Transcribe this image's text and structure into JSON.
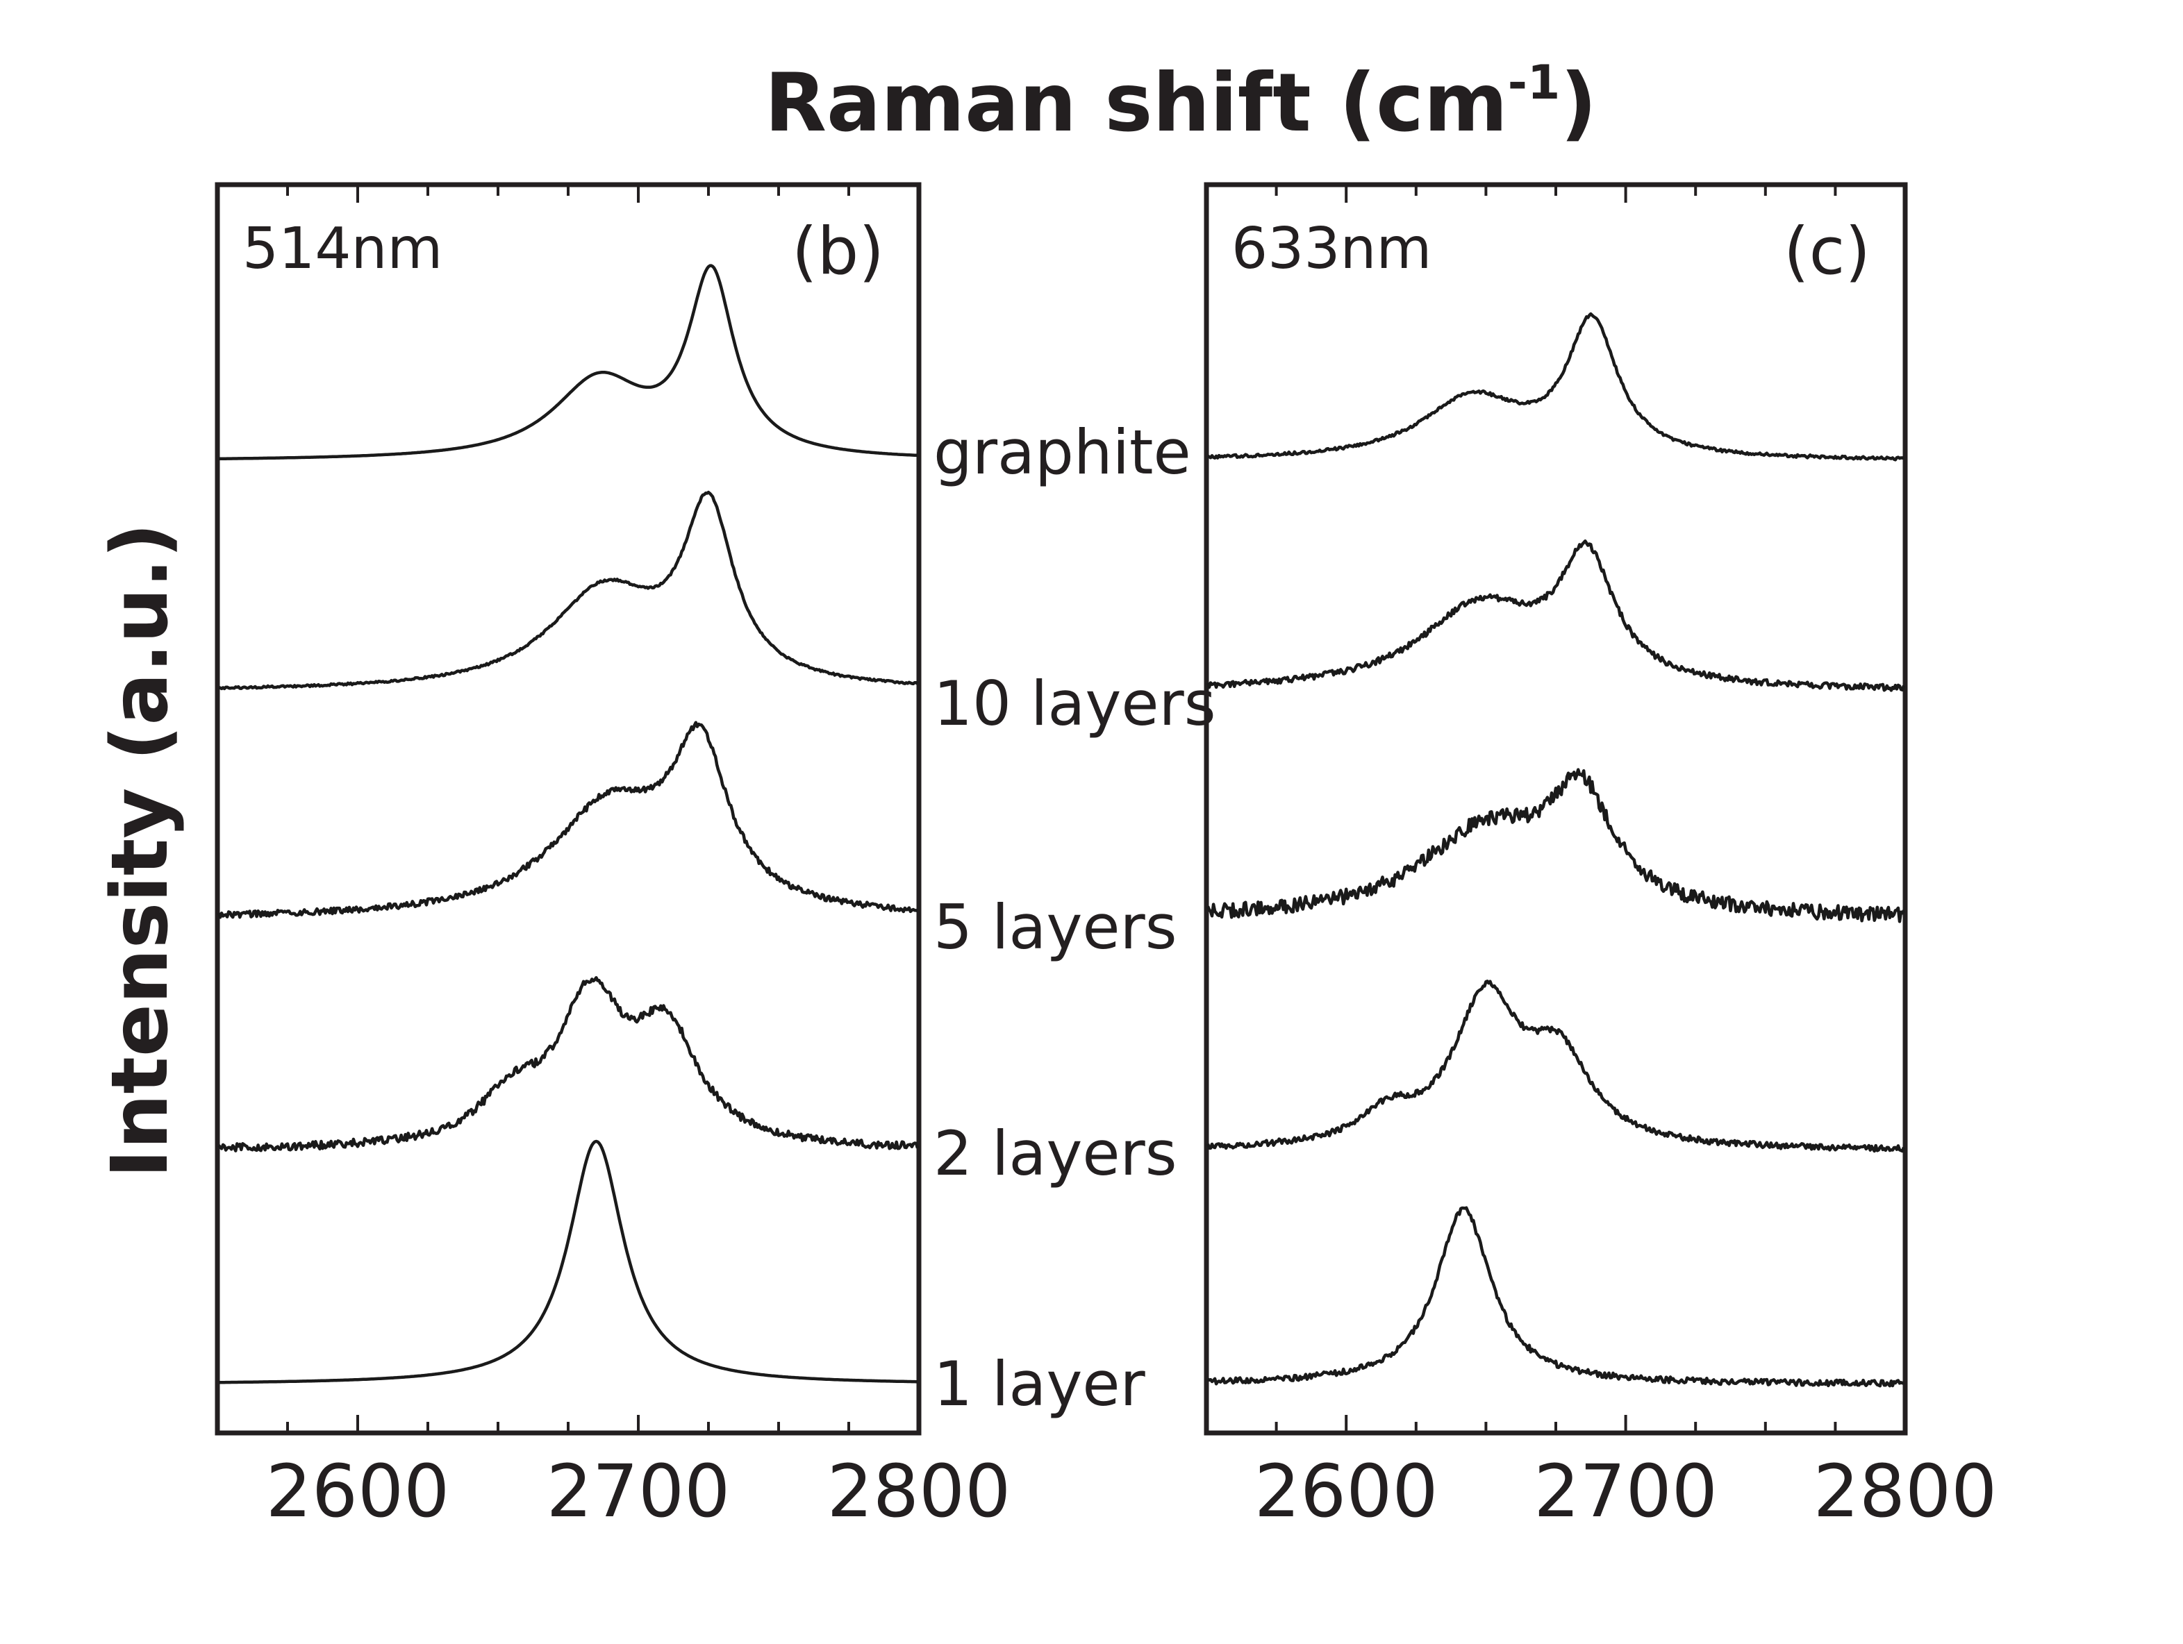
{
  "figure": {
    "top_label": "Raman shift (cm",
    "top_label_sup": "-1",
    "top_label_close": ")",
    "ylabel": "Intensity (a.u.)",
    "curve_labels": [
      "graphite",
      "10 layers",
      "5 layers",
      "2 layers",
      "1 layer"
    ]
  },
  "chart_data": [
    {
      "type": "line",
      "panel": "(b)",
      "wavelength": "514nm",
      "xlim": [
        2550,
        2800
      ],
      "xticks": [
        2600,
        2700,
        2800
      ],
      "grid": false,
      "series": [
        {
          "name": "graphite",
          "offset": 4.0,
          "components": [
            {
              "center": 2726,
              "amp": 0.74,
              "width": 10
            },
            {
              "center": 2686,
              "amp": 0.32,
              "width": 20
            }
          ]
        },
        {
          "name": "10 layers",
          "offset": 3.0,
          "components": [
            {
              "center": 2725,
              "amp": 0.7,
              "width": 11
            },
            {
              "center": 2688,
              "amp": 0.4,
              "width": 24
            }
          ]
        },
        {
          "name": "5 layers",
          "offset": 2.0,
          "components": [
            {
              "center": 2722,
              "amp": 0.62,
              "width": 12
            },
            {
              "center": 2690,
              "amp": 0.45,
              "width": 26
            }
          ]
        },
        {
          "name": "2 layers",
          "offset": 1.0,
          "components": [
            {
              "center": 2683,
              "amp": 0.58,
              "width": 14
            },
            {
              "center": 2710,
              "amp": 0.45,
              "width": 14
            },
            {
              "center": 2655,
              "amp": 0.18,
              "width": 14
            }
          ]
        },
        {
          "name": "1 layer",
          "offset": 0.0,
          "components": [
            {
              "center": 2685,
              "amp": 1.0,
              "width": 12
            }
          ]
        }
      ]
    },
    {
      "type": "line",
      "panel": "(c)",
      "wavelength": "633nm",
      "xlim": [
        2550,
        2800
      ],
      "xticks": [
        2600,
        2700,
        2800
      ],
      "grid": false,
      "series": [
        {
          "name": "graphite",
          "offset": 4.0,
          "components": [
            {
              "center": 2688,
              "amp": 0.55,
              "width": 11
            },
            {
              "center": 2645,
              "amp": 0.25,
              "width": 22
            }
          ]
        },
        {
          "name": "10 layers",
          "offset": 3.0,
          "components": [
            {
              "center": 2686,
              "amp": 0.5,
              "width": 12
            },
            {
              "center": 2648,
              "amp": 0.34,
              "width": 26
            }
          ]
        },
        {
          "name": "5 layers",
          "offset": 2.0,
          "components": [
            {
              "center": 2684,
              "amp": 0.45,
              "width": 14
            },
            {
              "center": 2650,
              "amp": 0.35,
              "width": 28
            }
          ]
        },
        {
          "name": "2 layers",
          "offset": 1.0,
          "components": [
            {
              "center": 2650,
              "amp": 0.6,
              "width": 14
            },
            {
              "center": 2676,
              "amp": 0.35,
              "width": 14
            },
            {
              "center": 2615,
              "amp": 0.12,
              "width": 12
            }
          ]
        },
        {
          "name": "1 layer",
          "offset": 0.0,
          "components": [
            {
              "center": 2642,
              "amp": 0.72,
              "width": 12
            }
          ]
        }
      ]
    }
  ]
}
